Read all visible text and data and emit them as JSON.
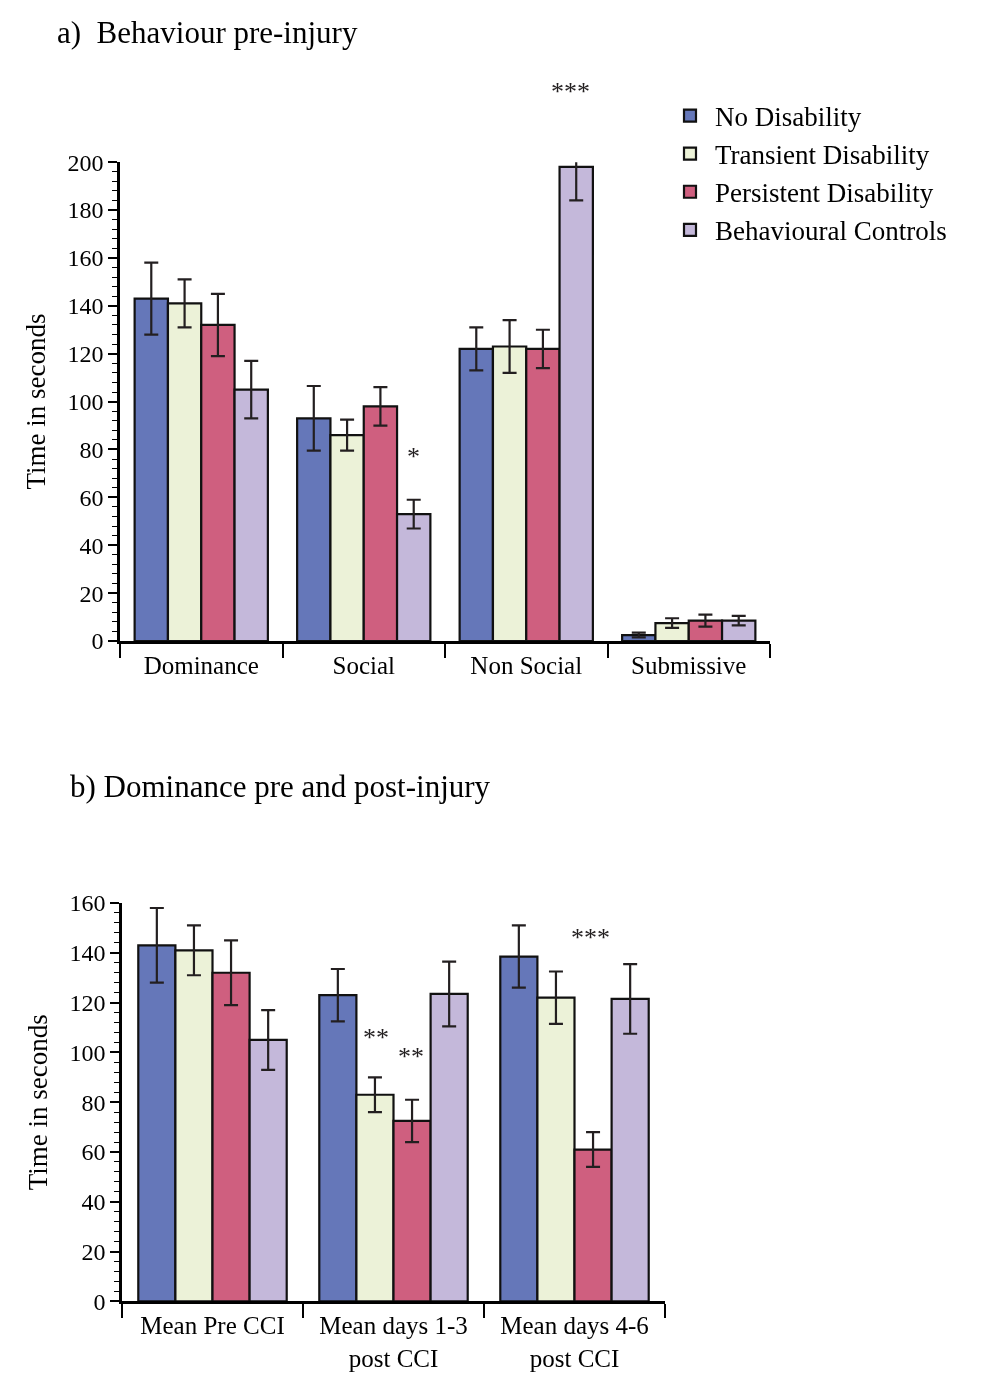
{
  "chart_data": [
    {
      "type": "bar",
      "title": "a)  Behaviour pre-injury",
      "ylabel": "Time in seconds",
      "categories": [
        "Dominance",
        "Social",
        "Non Social",
        "Submissive"
      ],
      "series": [
        {
          "name": "No Disability",
          "color": "#6577b9",
          "values": [
            143,
            93,
            122,
            2.5
          ],
          "errors": [
            15,
            13.5,
            9,
            1
          ]
        },
        {
          "name": "Transient Disability",
          "color": "#ecf2d8",
          "values": [
            141,
            86,
            123,
            7.5
          ],
          "errors": [
            10,
            6.5,
            11,
            2
          ]
        },
        {
          "name": "Persistent Disability",
          "color": "#cf5f7f",
          "values": [
            132,
            98,
            122,
            8.5
          ],
          "errors": [
            13,
            8,
            8,
            2.5
          ]
        },
        {
          "name": "Behavioural Controls",
          "color": "#c4b8da",
          "values": [
            105,
            53,
            198,
            8.5
          ],
          "errors": [
            12,
            6,
            14,
            2
          ]
        }
      ],
      "ylim": [
        0,
        200
      ],
      "yticks": [
        0,
        20,
        40,
        60,
        80,
        100,
        120,
        140,
        160,
        180,
        200
      ],
      "legend": "top right",
      "annotations": [
        "*",
        "***"
      ]
    },
    {
      "type": "bar",
      "title": "b) Dominance pre and post-injury",
      "ylabel": "Time in seconds",
      "categories": [
        "Mean Pre CCI",
        "Mean days 1-3\npost CCI",
        "Mean days 4-6\npost CCI"
      ],
      "series": [
        {
          "color": "#6577b9",
          "values": [
            143,
            123,
            138.5
          ],
          "errors": [
            15,
            10.5,
            12.5
          ]
        },
        {
          "color": "#ecf2d8",
          "values": [
            141,
            83,
            122
          ],
          "errors": [
            10,
            7,
            10.5
          ]
        },
        {
          "color": "#cf5f7f",
          "values": [
            132,
            72.5,
            61
          ],
          "errors": [
            13,
            8.5,
            7
          ]
        },
        {
          "color": "#c4b8da",
          "values": [
            105,
            123.5,
            121.5
          ],
          "errors": [
            12,
            13,
            14
          ]
        }
      ],
      "ylim": [
        0,
        160
      ],
      "yticks": [
        0,
        20,
        40,
        60,
        80,
        100,
        120,
        140,
        160
      ],
      "legend": false,
      "annotations": [
        "**",
        "**",
        "***"
      ]
    }
  ]
}
